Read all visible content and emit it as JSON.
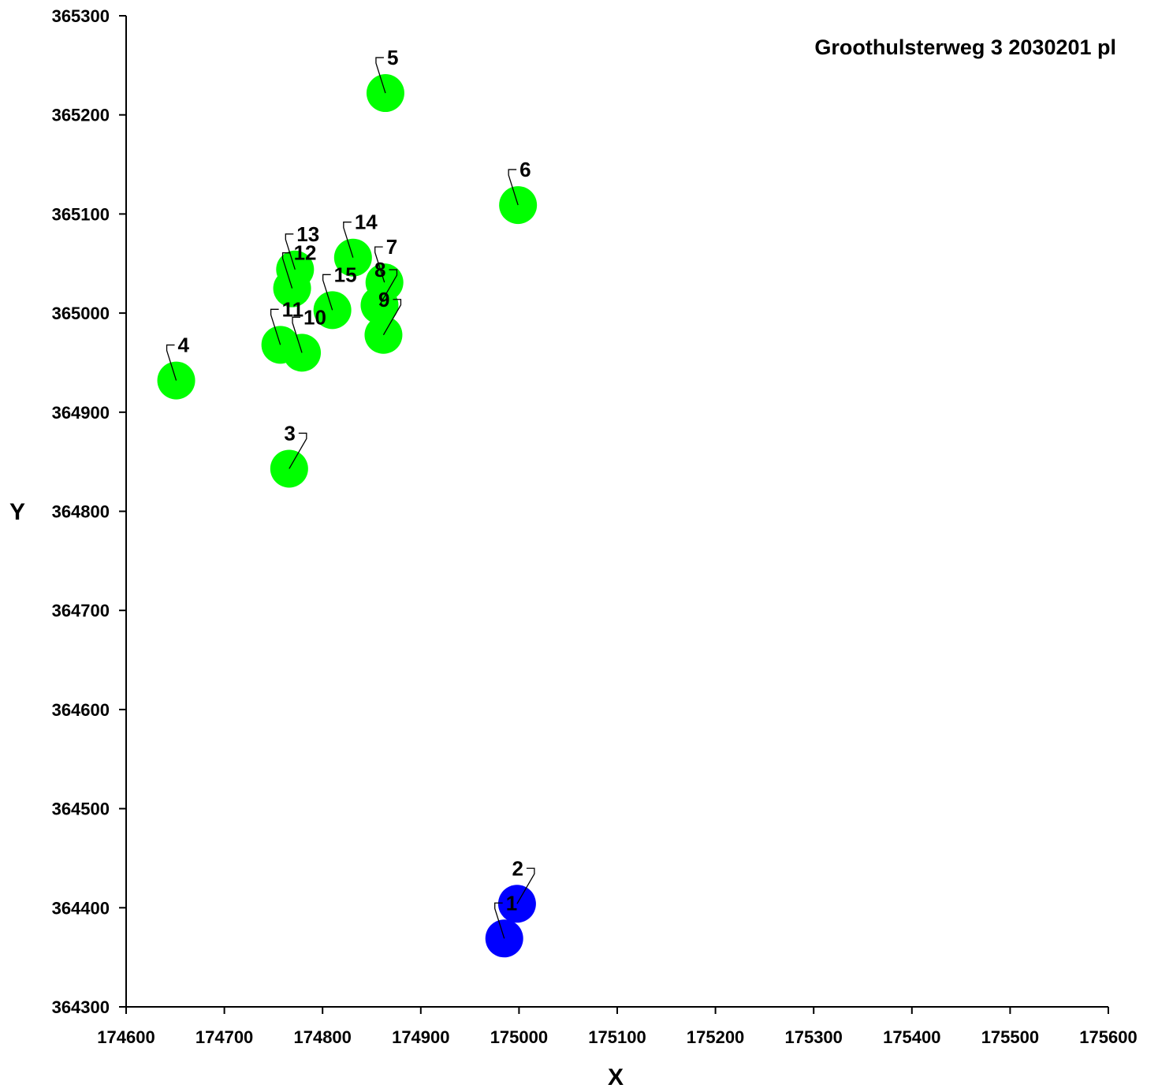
{
  "chart_data": {
    "type": "scatter",
    "title": "Groothulsterweg 3 2030201 pl",
    "xlabel": "X",
    "ylabel": "Y",
    "xlim": [
      174600,
      175600
    ],
    "ylim": [
      364300,
      365300
    ],
    "x_ticks": [
      "174600",
      "174700",
      "174800",
      "174900",
      "175000",
      "175100",
      "175200",
      "175300",
      "175400",
      "175500",
      "175600"
    ],
    "y_ticks": [
      "364300",
      "364400",
      "364500",
      "364600",
      "364700",
      "364800",
      "364900",
      "365000",
      "365100",
      "365200",
      "365300"
    ],
    "grid": false,
    "series": [
      {
        "color": "#0000ff",
        "points": [
          {
            "label": "1",
            "x": 174985,
            "y": 364369
          },
          {
            "label": "2",
            "x": 174998,
            "y": 364404
          }
        ]
      },
      {
        "color": "#00ff00",
        "points": [
          {
            "label": "3",
            "x": 174766,
            "y": 364843
          },
          {
            "label": "4",
            "x": 174651,
            "y": 364932
          },
          {
            "label": "5",
            "x": 174864,
            "y": 365222
          },
          {
            "label": "6",
            "x": 174999,
            "y": 365109
          },
          {
            "label": "7",
            "x": 174863,
            "y": 365031
          },
          {
            "label": "8",
            "x": 174858,
            "y": 365008
          },
          {
            "label": "9",
            "x": 174862,
            "y": 364978
          },
          {
            "label": "10",
            "x": 174779,
            "y": 364960
          },
          {
            "label": "11",
            "x": 174757,
            "y": 364968
          },
          {
            "label": "12",
            "x": 174769,
            "y": 365025
          },
          {
            "label": "13",
            "x": 174772,
            "y": 365044
          },
          {
            "label": "14",
            "x": 174831,
            "y": 365056
          },
          {
            "label": "15",
            "x": 174810,
            "y": 365003
          }
        ]
      }
    ]
  }
}
